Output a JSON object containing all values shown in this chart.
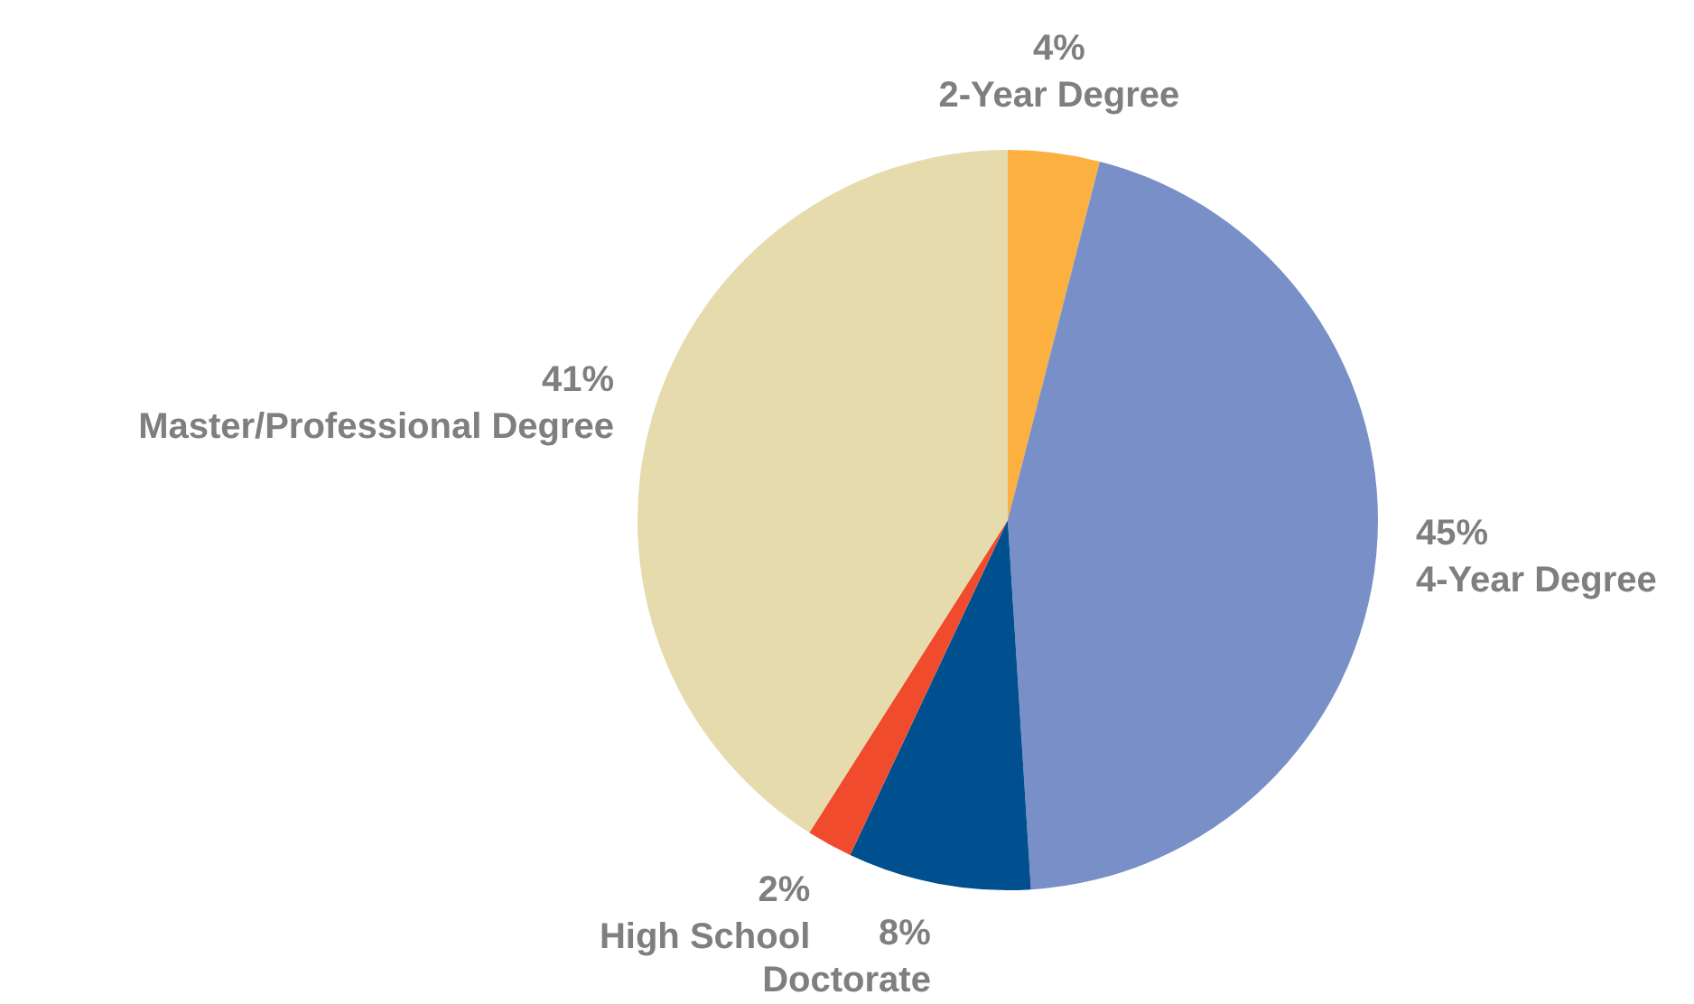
{
  "chart_data": {
    "type": "pie",
    "categories": [
      "2-Year Degree",
      "4-Year Degree",
      "Doctorate",
      "High School",
      "Master/Professional Degree"
    ],
    "values": [
      4,
      45,
      8,
      2,
      41
    ],
    "value_labels": [
      "4%",
      "45%",
      "8%",
      "2%",
      "41%"
    ],
    "colors": [
      "#fbb040",
      "#788fc8",
      "#00508f",
      "#ef4b2c",
      "#e5dbad"
    ]
  }
}
